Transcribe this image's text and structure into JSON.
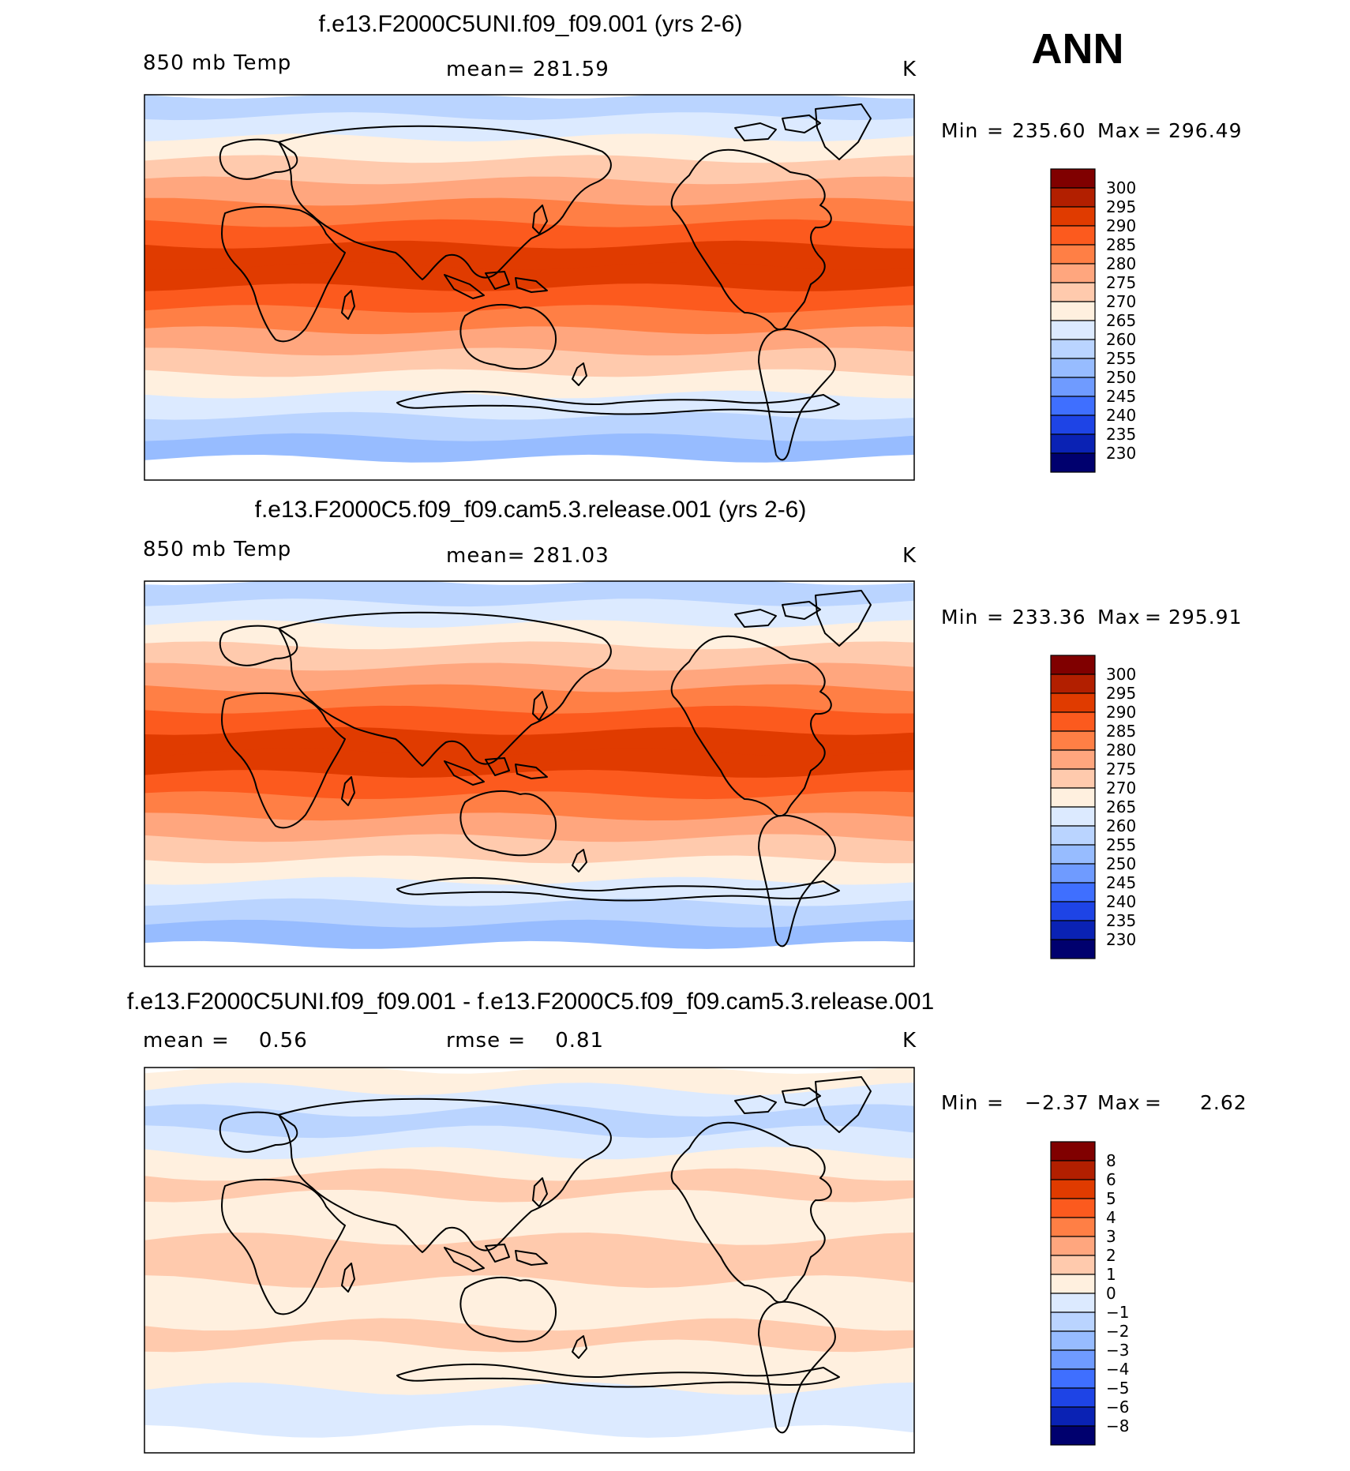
{
  "season": "ANN",
  "chart_data": [
    {
      "type": "heatmap",
      "title": "f.e13.F2000C5UNI.f09_f09.001 (yrs 2-6)",
      "variable": "850 mb Temp",
      "stat_label": "mean= 281.59",
      "units": "K",
      "min_label": "Min",
      "min_value": "235.60",
      "max_label": "Max",
      "max_value": "296.49",
      "colorbar_levels": [
        300,
        295,
        290,
        285,
        280,
        275,
        270,
        265,
        260,
        255,
        250,
        245,
        240,
        235,
        230
      ],
      "colorbar_tick_labels": [
        "300",
        "295",
        "290",
        "285",
        "280",
        "275",
        "270",
        "265",
        "260",
        "255",
        "250",
        "245",
        "240",
        "235",
        "230"
      ],
      "colorbar_colors": [
        "#800000",
        "#b21f00",
        "#e03b00",
        "#fc5a1e",
        "#ff7f45",
        "#ffa67e",
        "#ffcaad",
        "#fff0df",
        "#dceaff",
        "#bad4ff",
        "#97bcff",
        "#6f9bff",
        "#3f6fff",
        "#1e44e6",
        "#0a22b4",
        "#00006e"
      ],
      "band_colors_south_to_north": [
        "#ffffff",
        "#97bcff",
        "#bad4ff",
        "#dceaff",
        "#fff0df",
        "#ffcaad",
        "#ffa67e",
        "#ff7f45",
        "#fc5a1e",
        "#e03b00",
        "#e03b00",
        "#fc5a1e",
        "#ff7f45",
        "#ffa67e",
        "#ffcaad",
        "#fff0df",
        "#dceaff",
        "#bad4ff"
      ]
    },
    {
      "type": "heatmap",
      "title": "f.e13.F2000C5.f09_f09.cam5.3.release.001 (yrs 2-6)",
      "variable": "850 mb Temp",
      "stat_label": "mean= 281.03",
      "units": "K",
      "min_label": "Min",
      "min_value": "233.36",
      "max_label": "Max",
      "max_value": "295.91",
      "colorbar_levels": [
        300,
        295,
        290,
        285,
        280,
        275,
        270,
        265,
        260,
        255,
        250,
        245,
        240,
        235,
        230
      ],
      "colorbar_tick_labels": [
        "300",
        "295",
        "290",
        "285",
        "280",
        "275",
        "270",
        "265",
        "260",
        "255",
        "250",
        "245",
        "240",
        "235",
        "230"
      ],
      "colorbar_colors": [
        "#800000",
        "#b21f00",
        "#e03b00",
        "#fc5a1e",
        "#ff7f45",
        "#ffa67e",
        "#ffcaad",
        "#fff0df",
        "#dceaff",
        "#bad4ff",
        "#97bcff",
        "#6f9bff",
        "#3f6fff",
        "#1e44e6",
        "#0a22b4",
        "#00006e"
      ],
      "band_colors_south_to_north": [
        "#ffffff",
        "#97bcff",
        "#bad4ff",
        "#dceaff",
        "#fff0df",
        "#ffcaad",
        "#ffa67e",
        "#ff7f45",
        "#fc5a1e",
        "#e03b00",
        "#e03b00",
        "#fc5a1e",
        "#ff7f45",
        "#ffa67e",
        "#ffcaad",
        "#fff0df",
        "#dceaff",
        "#bad4ff"
      ]
    },
    {
      "type": "heatmap",
      "title": "f.e13.F2000C5UNI.f09_f09.001 - f.e13.F2000C5.f09_f09.cam5.3.release.001",
      "variable": "mean =    0.56",
      "stat_label": "rmse =    0.81",
      "units": "K",
      "min_label": "Min",
      "min_value": "−2.37",
      "max_label": "Max",
      "max_value": "2.62",
      "colorbar_levels": [
        8,
        6,
        5,
        4,
        3,
        2,
        1,
        0,
        -1,
        -2,
        -3,
        -4,
        -5,
        -6,
        -8
      ],
      "colorbar_tick_labels": [
        "8",
        "6",
        "5",
        "4",
        "3",
        "2",
        "1",
        "0",
        "−1",
        "−2",
        "−3",
        "−4",
        "−5",
        "−6",
        "−8"
      ],
      "colorbar_colors": [
        "#800000",
        "#b21f00",
        "#e03b00",
        "#fc5a1e",
        "#ff7f45",
        "#ffa67e",
        "#ffcaad",
        "#fff0df",
        "#dceaff",
        "#bad4ff",
        "#97bcff",
        "#6f9bff",
        "#3f6fff",
        "#1e44e6",
        "#0a22b4",
        "#00006e"
      ],
      "band_colors_south_to_north": [
        "#ffffff",
        "#dceaff",
        "#dceaff",
        "#fff0df",
        "#fff0df",
        "#ffcaad",
        "#fff0df",
        "#fff0df",
        "#ffcaad",
        "#ffcaad",
        "#fff0df",
        "#fff0df",
        "#ffcaad",
        "#fff0df",
        "#dceaff",
        "#bad4ff",
        "#dceaff",
        "#fff0df"
      ]
    }
  ]
}
